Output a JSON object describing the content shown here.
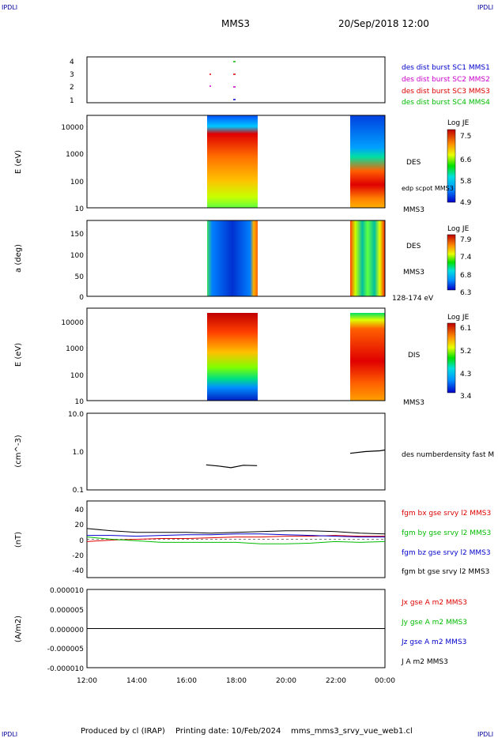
{
  "header": {
    "corner_left": "IPDLI",
    "corner_right": "IPDLI",
    "title": "MMS3",
    "datetime": "20/Sep/2018 12:00"
  },
  "footer": {
    "produced": "Produced by cl (IRAP)",
    "printing": "Printing date: 10/Feb/2024",
    "file": "mms_mms3_srvy_vue_web1.cl",
    "corner_left": "IPDLI",
    "corner_right": "IPDLI"
  },
  "x_axis": {
    "ticks": [
      "12:00",
      "14:00",
      "16:00",
      "18:00",
      "20:00",
      "22:00",
      "00:00"
    ],
    "range_hours": [
      12,
      24
    ]
  },
  "panels": {
    "burst": {
      "ticks": [
        "1",
        "2",
        "3",
        "4"
      ],
      "legend": [
        {
          "label": "des dist burst SC1 MMS1",
          "color": "#0000cc"
        },
        {
          "label": "des dist burst SC2 MMS2",
          "color": "#cc00cc"
        },
        {
          "label": "des dist burst SC3 MMS3",
          "color": "#dd0000"
        },
        {
          "label": "des dist burst SC4 MMS4",
          "color": "#00bb00"
        }
      ]
    },
    "des_energy": {
      "ylabel": "E (eV)",
      "ticks": [
        "10000",
        "1000",
        "100",
        "10"
      ],
      "cbar_title": "Log JE",
      "cbar_ticks": [
        "7.5",
        "6.6",
        "5.8",
        "4.9"
      ],
      "label1": "DES",
      "label2": "edp scpot MMS3",
      "label3": "MMS3"
    },
    "des_pitch": {
      "ylabel": "a (deg)",
      "ticks": [
        "150",
        "100",
        "50",
        "0"
      ],
      "cbar_title": "Log JE",
      "cbar_ticks": [
        "7.9",
        "7.4",
        "6.8",
        "6.3"
      ],
      "label1": "DES",
      "label2": "MMS3",
      "label3": "128-174 eV"
    },
    "dis_energy": {
      "ylabel": "E (eV)",
      "ticks": [
        "10000",
        "1000",
        "100",
        "10"
      ],
      "cbar_title": "Log JE",
      "cbar_ticks": [
        "6.1",
        "5.2",
        "4.3",
        "3.4"
      ],
      "label1": "DIS",
      "label2": "MMS3"
    },
    "density": {
      "ylabel": "(cm^-3)",
      "ticks": [
        "10.0",
        "1.0",
        "0.1"
      ],
      "legend": "des numberdensity fast M"
    },
    "bfield": {
      "ylabel": "(nT)",
      "ticks": [
        "40",
        "20",
        "0",
        "-20",
        "-40"
      ],
      "legend": [
        {
          "label": "fgm bx gse srvy l2 MMS3",
          "color": "#dd0000"
        },
        {
          "label": "fgm by gse srvy l2 MMS3",
          "color": "#00bb00"
        },
        {
          "label": "fgm bz gse srvy l2 MMS3",
          "color": "#0000cc"
        },
        {
          "label": "fgm bt gse srvy l2 MMS3",
          "color": "#000000"
        }
      ]
    },
    "current": {
      "ylabel": "(A/m2)",
      "ticks": [
        "0.000010",
        "0.000005",
        "0.000000",
        "-0.000005",
        "-0.000010"
      ],
      "legend": [
        {
          "label": "Jx gse A m2 MMS3",
          "color": "#dd0000"
        },
        {
          "label": "Jy gse A m2 MMS3",
          "color": "#00bb00"
        },
        {
          "label": "Jz gse A m2 MMS3",
          "color": "#0000cc"
        },
        {
          "label": "J A m2 MMS3",
          "color": "#000000"
        }
      ]
    }
  },
  "chart_data": {
    "type": "line",
    "title": "MMS3",
    "intervals_hours": [
      [
        16.8,
        18.85
      ],
      [
        22.6,
        24.0
      ]
    ],
    "density": {
      "times": [
        16.8,
        17.3,
        17.8,
        18.3,
        18.85,
        22.6,
        23.2,
        23.8,
        24.0
      ],
      "values": [
        0.45,
        0.42,
        0.38,
        0.44,
        0.43,
        0.9,
        1.0,
        1.05,
        1.1
      ]
    },
    "bfield": {
      "times": [
        12.0,
        13.0,
        14.0,
        15.0,
        16.0,
        17.0,
        18.0,
        19.0,
        20.0,
        21.0,
        22.0,
        23.0,
        24.0
      ],
      "series": [
        {
          "name": "fgm bx gse srvy l2 MMS3",
          "values": [
            -3,
            -1,
            0,
            1,
            1,
            2,
            3,
            3,
            4,
            4,
            5,
            4,
            4
          ]
        },
        {
          "name": "fgm by gse srvy l2 MMS3",
          "values": [
            3,
            0,
            -2,
            -4,
            -4,
            -4,
            -4,
            -6,
            -6,
            -5,
            -3,
            -4,
            -3
          ]
        },
        {
          "name": "fgm bz gse srvy l2 MMS3",
          "values": [
            5,
            5,
            4,
            5,
            6,
            6,
            7,
            7,
            6,
            5,
            4,
            3,
            3
          ]
        },
        {
          "name": "fgm bt gse srvy l2 MMS3",
          "values": [
            14,
            11,
            9,
            9,
            9,
            8,
            9,
            10,
            11,
            11,
            10,
            8,
            7
          ]
        }
      ]
    },
    "current": {
      "times": [
        12.0,
        24.0
      ],
      "values": [
        0.0,
        0.0
      ]
    }
  }
}
